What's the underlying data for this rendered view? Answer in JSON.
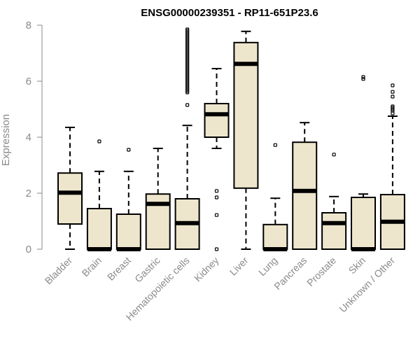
{
  "chart_data": {
    "type": "boxplot",
    "title": "ENSG00000239351 - RP11-651P23.6",
    "xlabel": "",
    "ylabel": "Expression",
    "ylim": [
      0,
      8
    ],
    "yticks": [
      0,
      2,
      4,
      6,
      8
    ],
    "box_fill": "#EDE6CD",
    "categories": [
      "Bladder",
      "Brain",
      "Breast",
      "Gastric",
      "Hematopoietic cells",
      "Kidney",
      "Liver",
      "Lung",
      "Pancreas",
      "Prostate",
      "Skin",
      "Unknown / Other"
    ],
    "boxes": [
      {
        "name": "Bladder",
        "min": 0.0,
        "q1": 0.9,
        "median": 2.02,
        "q3": 2.72,
        "max": 4.35,
        "outliers": []
      },
      {
        "name": "Brain",
        "min": 0.0,
        "q1": 0.0,
        "median": 0.0,
        "q3": 1.45,
        "max": 2.78,
        "outliers": [
          3.85
        ]
      },
      {
        "name": "Breast",
        "min": 0.0,
        "q1": 0.0,
        "median": 0.0,
        "q3": 1.25,
        "max": 2.78,
        "outliers": [
          3.55
        ]
      },
      {
        "name": "Gastric",
        "min": 0.0,
        "q1": 0.0,
        "median": 1.62,
        "q3": 1.97,
        "max": 3.6,
        "outliers": []
      },
      {
        "name": "Hematopoietic cells",
        "min": 0.0,
        "q1": 0.0,
        "median": 0.93,
        "q3": 1.8,
        "max": 4.42,
        "outliers": [
          5.15,
          5.6,
          5.65,
          5.7,
          5.75,
          5.8,
          5.85,
          5.9,
          5.95,
          6.0,
          6.05,
          6.1,
          6.15,
          6.2,
          6.25,
          6.3,
          6.35,
          6.4,
          6.45,
          6.5,
          6.55,
          6.6,
          6.65,
          6.7,
          6.75,
          6.8,
          6.85,
          6.9,
          6.95,
          7.0,
          7.05,
          7.1,
          7.15,
          7.2,
          7.25,
          7.3,
          7.35,
          7.4,
          7.45,
          7.5,
          7.55,
          7.6,
          7.65,
          7.7,
          7.75,
          7.8,
          7.85
        ]
      },
      {
        "name": "Kidney",
        "min": 3.6,
        "q1": 4.0,
        "median": 4.82,
        "q3": 5.2,
        "max": 6.45,
        "outliers": [
          2.08,
          1.85,
          1.22,
          0.0
        ]
      },
      {
        "name": "Liver",
        "min": 0.0,
        "q1": 2.18,
        "median": 6.62,
        "q3": 7.38,
        "max": 7.78,
        "outliers": []
      },
      {
        "name": "Lung",
        "min": 0.0,
        "q1": 0.0,
        "median": 0.0,
        "q3": 0.88,
        "max": 1.82,
        "outliers": [
          3.72
        ]
      },
      {
        "name": "Pancreas",
        "min": 0.0,
        "q1": 0.0,
        "median": 2.08,
        "q3": 3.82,
        "max": 4.52,
        "outliers": []
      },
      {
        "name": "Prostate",
        "min": 0.0,
        "q1": 0.0,
        "median": 0.93,
        "q3": 1.3,
        "max": 1.88,
        "outliers": [
          3.38
        ]
      },
      {
        "name": "Skin",
        "min": 0.0,
        "q1": 0.0,
        "median": 0.0,
        "q3": 1.85,
        "max": 1.97,
        "outliers": [
          6.08,
          6.15
        ]
      },
      {
        "name": "Unknown / Other",
        "min": 0.0,
        "q1": 0.0,
        "median": 0.98,
        "q3": 1.95,
        "max": 4.75,
        "outliers": [
          4.85,
          4.95,
          5.0,
          5.05,
          5.1,
          5.45,
          5.62,
          5.85
        ]
      }
    ]
  }
}
